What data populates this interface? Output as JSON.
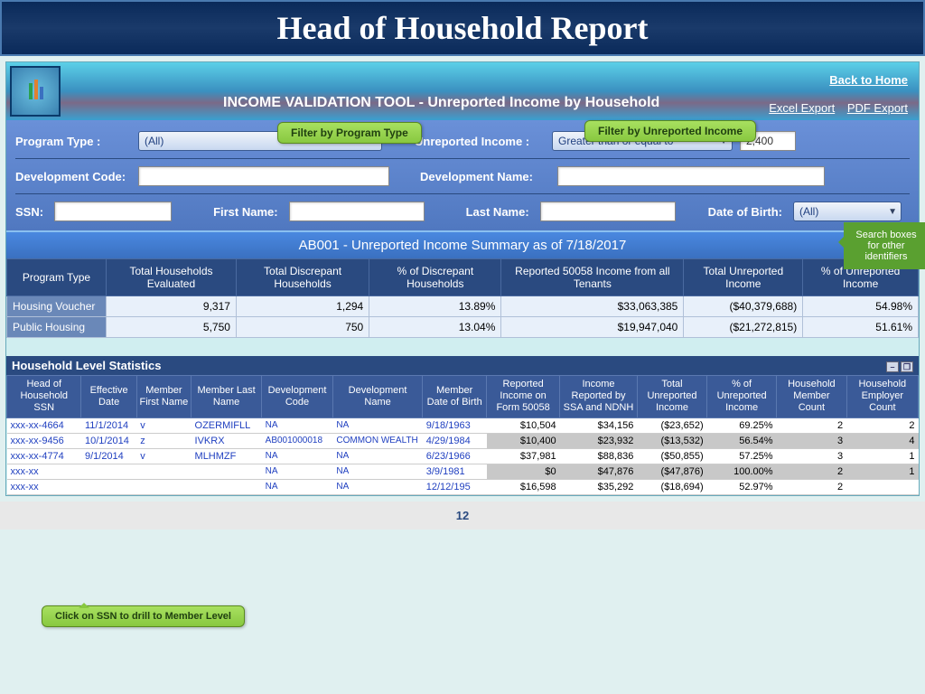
{
  "slide": {
    "title": "Head of Household Report",
    "page_number": "12"
  },
  "app": {
    "title": "INCOME VALIDATION TOOL - Unreported Income by Household",
    "back_home": "Back to Home",
    "excel_export": "Excel Export",
    "pdf_export": "PDF Export"
  },
  "callouts": {
    "program_type": "Filter by Program Type",
    "unreported_income": "Filter by Unreported Income",
    "search_boxes": "Search boxes for other identifiers",
    "drill_ssn": "Click on SSN to drill to Member Level"
  },
  "filters": {
    "program_type_label": "Program Type :",
    "program_type_value": "(All)",
    "unreported_label": "Unreported Income :",
    "unreported_value": "Greater than or equal to",
    "unreported_amount": "2,400",
    "dev_code_label": "Development Code:",
    "dev_name_label": "Development  Name:",
    "ssn_label": "SSN:",
    "first_name_label": "First Name:",
    "last_name_label": "Last Name:",
    "dob_label": "Date of Birth:",
    "dob_value": "(All)"
  },
  "summary": {
    "header": "AB001 - Unreported Income Summary as of 7/18/2017",
    "cols": [
      "Program Type",
      "Total Households Evaluated",
      "Total Discrepant Households",
      "% of Discrepant Households",
      "Reported 50058 Income from all Tenants",
      "Total Unreported Income",
      "% of Unreported Income"
    ],
    "rows": [
      {
        "label": "Housing Voucher",
        "c1": "9,317",
        "c2": "1,294",
        "c3": "13.89%",
        "c4": "$33,063,385",
        "c5": "($40,379,688)",
        "c6": "54.98%"
      },
      {
        "label": "Public Housing",
        "c1": "5,750",
        "c2": "750",
        "c3": "13.04%",
        "c4": "$19,947,040",
        "c5": "($21,272,815)",
        "c6": "51.61%"
      }
    ]
  },
  "detail": {
    "title": "Household Level Statistics",
    "cols": [
      "Head of Household SSN",
      "Effective Date",
      "Member First Name",
      "Member Last Name",
      "Development Code",
      "Development Name",
      "Member Date of Birth",
      "Reported Income on Form 50058",
      "Income Reported by SSA and NDNH",
      "Total Unreported Income",
      "% of Unreported Income",
      "Household Member Count",
      "Household Employer Count"
    ],
    "rows": [
      {
        "ssn": "xxx-xx-4664",
        "eff": "11/1/2014",
        "fn": "v",
        "ln": "OZERMIFLL",
        "dc": "NA",
        "dn": "NA",
        "dob": "9/18/1963",
        "rep": "$10,504",
        "ssa": "$34,156",
        "unrep": "($23,652)",
        "pct": "69.25%",
        "mc": "2",
        "ec": "2",
        "shade": false
      },
      {
        "ssn": "xxx-xx-9456",
        "eff": "10/1/2014",
        "fn": "z",
        "ln": "IVKRX",
        "dc": "AB001000018",
        "dn": "COMMON WEALTH",
        "dob": "4/29/1984",
        "rep": "$10,400",
        "ssa": "$23,932",
        "unrep": "($13,532)",
        "pct": "56.54%",
        "mc": "3",
        "ec": "4",
        "shade": true
      },
      {
        "ssn": "xxx-xx-4774",
        "eff": "9/1/2014",
        "fn": "v",
        "ln": "MLHMZF",
        "dc": "NA",
        "dn": "NA",
        "dob": "6/23/1966",
        "rep": "$37,981",
        "ssa": "$88,836",
        "unrep": "($50,855)",
        "pct": "57.25%",
        "mc": "3",
        "ec": "1",
        "shade": false
      },
      {
        "ssn": "xxx-xx",
        "eff": "",
        "fn": "",
        "ln": "",
        "dc": "NA",
        "dn": "NA",
        "dob": "3/9/1981",
        "rep": "$0",
        "ssa": "$47,876",
        "unrep": "($47,876)",
        "pct": "100.00%",
        "mc": "2",
        "ec": "1",
        "shade": true
      },
      {
        "ssn": "xxx-xx",
        "eff": "",
        "fn": "",
        "ln": "",
        "dc": "NA",
        "dn": "NA",
        "dob": "12/12/195",
        "rep": "$16,598",
        "ssa": "$35,292",
        "unrep": "($18,694)",
        "pct": "52.97%",
        "mc": "2",
        "ec": "",
        "shade": false
      }
    ]
  }
}
